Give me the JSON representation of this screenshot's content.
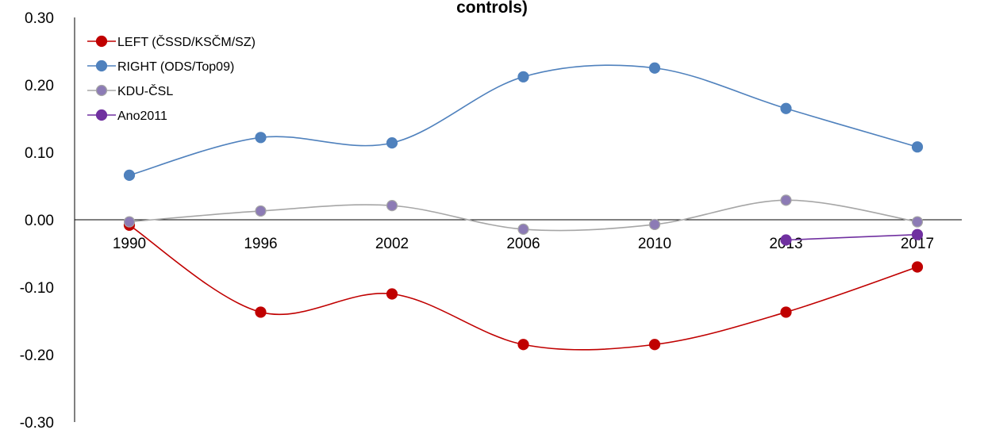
{
  "chart_data": {
    "type": "line",
    "title": "controls)",
    "categories": [
      "1990",
      "1996",
      "2002",
      "2006",
      "2010",
      "2013",
      "2017"
    ],
    "ylim": [
      -0.3,
      0.3
    ],
    "yticks": [
      "-0.30",
      "-0.20",
      "-0.10",
      "0.00",
      "0.10",
      "0.20",
      "0.30"
    ],
    "grid": false,
    "legend_position": "top-left",
    "smooth": true,
    "series": [
      {
        "name": "LEFT (ČSSD/KSČM/SZ)",
        "color": "#c00000",
        "marker_color": "#c00000",
        "values": [
          -0.008,
          -0.137,
          -0.11,
          -0.185,
          -0.185,
          -0.137,
          -0.07
        ]
      },
      {
        "name": "RIGHT (ODS/Top09)",
        "color": "#4f81bd",
        "marker_color": "#4f81bd",
        "values": [
          0.066,
          0.122,
          0.114,
          0.212,
          0.225,
          0.165,
          0.108
        ]
      },
      {
        "name": "KDU-ČSL",
        "color": "#a6a6a6",
        "marker_color": "#8c7bb5",
        "values": [
          -0.003,
          0.013,
          0.021,
          -0.014,
          -0.007,
          0.029,
          -0.003
        ]
      },
      {
        "name": "Ano2011",
        "color": "#7030a0",
        "marker_color": "#7030a0",
        "values": [
          null,
          null,
          null,
          null,
          null,
          -0.03,
          -0.022
        ]
      }
    ]
  }
}
